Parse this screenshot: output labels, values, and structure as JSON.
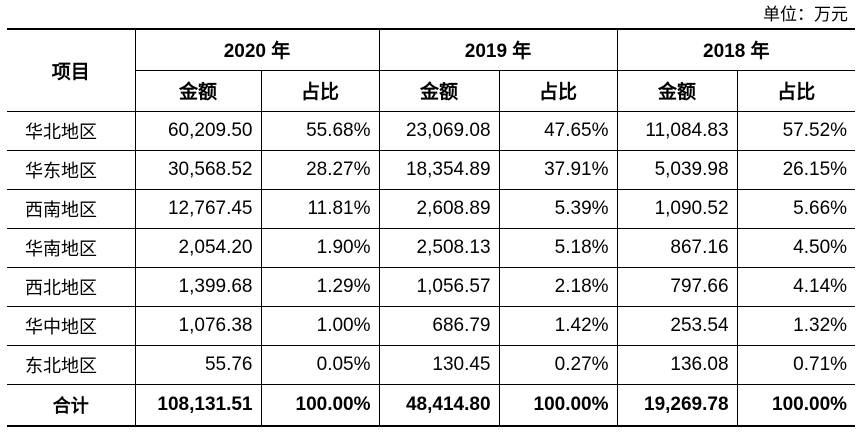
{
  "unit_note": "单位：万元",
  "header": {
    "item": "项目",
    "years": [
      "2020 年",
      "2019 年",
      "2018 年"
    ],
    "amount": "金额",
    "ratio": "占比"
  },
  "rows": [
    {
      "region": "华北地区",
      "values": [
        "60,209.50",
        "55.68%",
        "23,069.08",
        "47.65%",
        "11,084.83",
        "57.52%"
      ]
    },
    {
      "region": "华东地区",
      "values": [
        "30,568.52",
        "28.27%",
        "18,354.89",
        "37.91%",
        "5,039.98",
        "26.15%"
      ]
    },
    {
      "region": "西南地区",
      "values": [
        "12,767.45",
        "11.81%",
        "2,608.89",
        "5.39%",
        "1,090.52",
        "5.66%"
      ]
    },
    {
      "region": "华南地区",
      "values": [
        "2,054.20",
        "1.90%",
        "2,508.13",
        "5.18%",
        "867.16",
        "4.50%"
      ]
    },
    {
      "region": "西北地区",
      "values": [
        "1,399.68",
        "1.29%",
        "1,056.57",
        "2.18%",
        "797.66",
        "4.14%"
      ]
    },
    {
      "region": "华中地区",
      "values": [
        "1,076.38",
        "1.00%",
        "686.79",
        "1.42%",
        "253.54",
        "1.32%"
      ]
    },
    {
      "region": "东北地区",
      "values": [
        "55.76",
        "0.05%",
        "130.45",
        "0.27%",
        "136.08",
        "0.71%"
      ]
    }
  ],
  "total": {
    "label": "合计",
    "values": [
      "108,131.51",
      "100.00%",
      "48,414.80",
      "100.00%",
      "19,269.78",
      "100.00%"
    ]
  }
}
